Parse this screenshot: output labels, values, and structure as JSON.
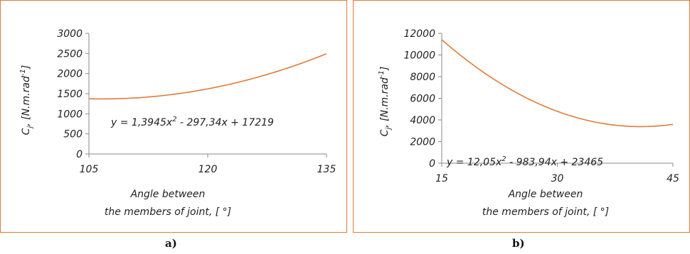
{
  "colors": {
    "border": "#e07b39",
    "line": "#e07b39",
    "axis": "#8a8a8a",
    "text": "#222222"
  },
  "chart_data": [
    {
      "type": "line",
      "caption": "a)",
      "xlabel_line1": "Angle between",
      "xlabel_line2": "the members of joint, [ °]",
      "ylabel_base": "C",
      "ylabel_sub": "j",
      "ylabel_rest": ", [N.m.rad",
      "ylabel_sup": "-1",
      "ylabel_end": "]",
      "xlim": [
        105,
        135
      ],
      "ylim": [
        0,
        3000
      ],
      "xticks": [
        "105",
        "120",
        "135"
      ],
      "yticks": [
        "0",
        "500",
        "1000",
        "1500",
        "2000",
        "2500",
        "3000"
      ],
      "equation_pre": "y = 1,3945x",
      "equation_sup": "2",
      "equation_post": " - 297,34x + 17219",
      "coefficients": {
        "a": 1.3945,
        "b": -297.34,
        "c": 17219
      },
      "x_range": [
        105,
        135
      ]
    },
    {
      "type": "line",
      "caption": "b)",
      "xlabel_line1": "Angle between",
      "xlabel_line2": "the members of joint, [ °]",
      "ylabel_base": "C",
      "ylabel_sub": "j",
      "ylabel_rest": ", [N.m.rad",
      "ylabel_sup": "-1",
      "ylabel_end": "]",
      "xlim": [
        15,
        45
      ],
      "ylim": [
        0,
        12000
      ],
      "xticks": [
        "15",
        "30",
        "45"
      ],
      "yticks": [
        "0",
        "2000",
        "4000",
        "6000",
        "8000",
        "10000",
        "12000"
      ],
      "equation_pre": "y = 12,05x",
      "equation_sup": "2",
      "equation_post": " - 983,94x + 23465",
      "coefficients": {
        "a": 12.05,
        "b": -983.94,
        "c": 23465
      },
      "x_range": [
        15,
        45
      ]
    }
  ]
}
